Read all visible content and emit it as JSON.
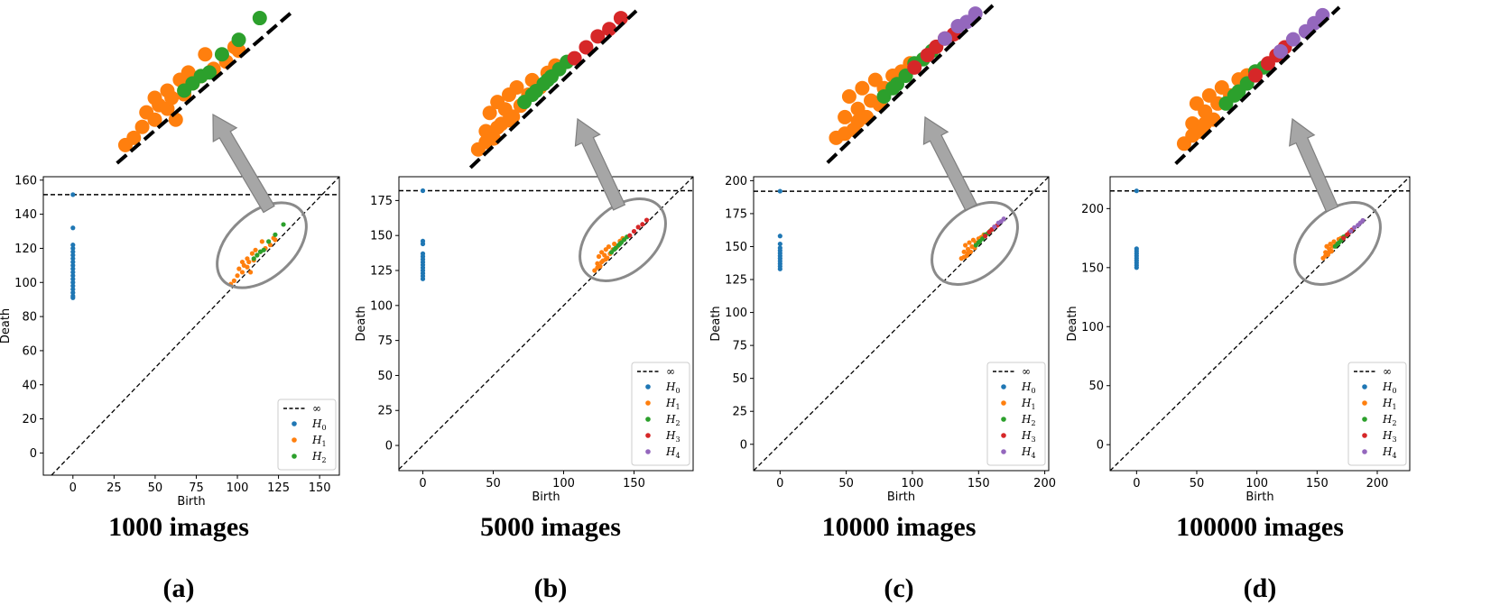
{
  "chart_data": [
    {
      "type": "scatter",
      "panel": "(a)",
      "caption": "1000 images",
      "xlabel": "Birth",
      "ylabel": "Death",
      "xlim": [
        -18,
        162
      ],
      "ylim": [
        -13,
        162
      ],
      "xticks": [
        "0",
        "25",
        "50",
        "75",
        "100",
        "125",
        "150"
      ],
      "yticks": [
        "0",
        "20",
        "40",
        "60",
        "80",
        "100",
        "120",
        "140",
        "160"
      ],
      "infinity_death": 151.5,
      "legend": {
        "infinity": "∞",
        "series_bases": [
          "H",
          "H",
          "H"
        ],
        "series_subs": [
          "0",
          "1",
          "2"
        ]
      },
      "series": [
        {
          "name": "H0",
          "color": "#1f77b4",
          "points": [
            [
              0,
              151.5
            ],
            [
              0,
              132
            ],
            [
              0,
              122
            ],
            [
              0,
              120
            ],
            [
              0,
              118
            ],
            [
              0,
              116
            ],
            [
              0,
              114
            ],
            [
              0,
              112
            ],
            [
              0,
              110
            ],
            [
              0,
              108
            ],
            [
              0,
              106
            ],
            [
              0,
              104
            ],
            [
              0,
              102
            ],
            [
              0,
              100
            ],
            [
              0,
              98
            ],
            [
              0,
              96
            ],
            [
              0,
              94
            ],
            [
              0,
              92
            ],
            [
              0,
              91
            ]
          ]
        },
        {
          "name": "H1",
          "color": "#ff7f0e",
          "points": [
            [
              98,
              101
            ],
            [
              100,
              104
            ],
            [
              101,
              108
            ],
            [
              103,
              106
            ],
            [
              104,
              110
            ],
            [
              106,
              109
            ],
            [
              107,
              112
            ],
            [
              108,
              106
            ],
            [
              110,
              113
            ],
            [
              112,
              116
            ],
            [
              114,
              118
            ],
            [
              117,
              120
            ],
            [
              120,
              122
            ],
            [
              123,
              125
            ],
            [
              103,
              112
            ],
            [
              106,
              114
            ],
            [
              109,
              117
            ],
            [
              111,
              119
            ],
            [
              96,
              99
            ],
            [
              115,
              124
            ],
            [
              122,
              126
            ]
          ]
        },
        {
          "name": "H2",
          "color": "#2ca02c",
          "points": [
            [
              112,
              116
            ],
            [
              116,
              119
            ],
            [
              119,
              124
            ],
            [
              123,
              128
            ],
            [
              128,
              134
            ],
            [
              110,
              114
            ],
            [
              114,
              118
            ]
          ]
        }
      ]
    },
    {
      "type": "scatter",
      "panel": "(b)",
      "caption": "5000 images",
      "xlabel": "Birth",
      "ylabel": "Death",
      "xlim": [
        -17,
        192
      ],
      "ylim": [
        -18,
        192
      ],
      "xticks": [
        "0",
        "50",
        "100",
        "150"
      ],
      "yticks": [
        "0",
        "25",
        "50",
        "75",
        "100",
        "125",
        "150",
        "175"
      ],
      "infinity_death": 182,
      "legend": {
        "infinity": "∞",
        "series_bases": [
          "H",
          "H",
          "H",
          "H",
          "H"
        ],
        "series_subs": [
          "0",
          "1",
          "2",
          "3",
          "4"
        ]
      },
      "series": [
        {
          "name": "H0",
          "color": "#1f77b4",
          "points": [
            [
              0,
              182
            ],
            [
              0,
              146
            ],
            [
              0,
              144
            ],
            [
              0,
              137
            ],
            [
              0,
              135
            ],
            [
              0,
              133
            ],
            [
              0,
              131
            ],
            [
              0,
              129
            ],
            [
              0,
              127
            ],
            [
              0,
              125
            ],
            [
              0,
              123
            ],
            [
              0,
              121
            ],
            [
              0,
              119
            ]
          ]
        },
        {
          "name": "H1",
          "color": "#ff7f0e",
          "points": [
            [
              122,
              125
            ],
            [
              124,
              130
            ],
            [
              125,
              135
            ],
            [
              126,
              128
            ],
            [
              127,
              138
            ],
            [
              128,
              132
            ],
            [
              129,
              136
            ],
            [
              130,
              140
            ],
            [
              131,
              134
            ],
            [
              132,
              142
            ],
            [
              133,
              137
            ],
            [
              135,
              140
            ],
            [
              136,
              144
            ],
            [
              138,
              142
            ],
            [
              140,
              146
            ],
            [
              142,
              148
            ],
            [
              124,
              127
            ],
            [
              127,
              131
            ],
            [
              130,
              133
            ]
          ]
        },
        {
          "name": "H2",
          "color": "#2ca02c",
          "points": [
            [
              134,
              138
            ],
            [
              137,
              141
            ],
            [
              139,
              143
            ],
            [
              141,
              145
            ],
            [
              143,
              147
            ],
            [
              145,
              149
            ],
            [
              136,
              140
            ],
            [
              140,
              144
            ]
          ]
        },
        {
          "name": "H3",
          "color": "#d62728",
          "points": [
            [
              147,
              150
            ],
            [
              150,
              153
            ],
            [
              153,
              156
            ],
            [
              156,
              158
            ],
            [
              159,
              161
            ]
          ]
        }
      ]
    },
    {
      "type": "scatter",
      "panel": "(c)",
      "caption": "10000 images",
      "xlabel": "Birth",
      "ylabel": "Death",
      "xlim": [
        -20,
        203
      ],
      "ylim": [
        -20,
        203
      ],
      "xticks": [
        "0",
        "50",
        "100",
        "150",
        "200"
      ],
      "yticks": [
        "0",
        "25",
        "50",
        "75",
        "100",
        "125",
        "150",
        "175",
        "200"
      ],
      "infinity_death": 192,
      "legend": {
        "infinity": "∞",
        "series_bases": [
          "H",
          "H",
          "H",
          "H",
          "H"
        ],
        "series_subs": [
          "0",
          "1",
          "2",
          "3",
          "4"
        ]
      },
      "series": [
        {
          "name": "H0",
          "color": "#1f77b4",
          "points": [
            [
              0,
              192
            ],
            [
              0,
              158
            ],
            [
              0,
              152
            ],
            [
              0,
              149
            ],
            [
              0,
              147
            ],
            [
              0,
              145
            ],
            [
              0,
              143
            ],
            [
              0,
              141
            ],
            [
              0,
              139
            ],
            [
              0,
              137
            ],
            [
              0,
              135
            ],
            [
              0,
              133
            ]
          ]
        },
        {
          "name": "H1",
          "color": "#ff7f0e",
          "points": [
            [
              137,
              141
            ],
            [
              139,
              146
            ],
            [
              140,
              151
            ],
            [
              141,
              143
            ],
            [
              142,
              148
            ],
            [
              143,
              153
            ],
            [
              144,
              146
            ],
            [
              145,
              150
            ],
            [
              146,
              155
            ],
            [
              147,
              149
            ],
            [
              148,
              153
            ],
            [
              150,
              156
            ],
            [
              152,
              157
            ],
            [
              154,
              159
            ],
            [
              139,
              142
            ],
            [
              142,
              145
            ]
          ]
        },
        {
          "name": "H2",
          "color": "#2ca02c",
          "points": [
            [
              148,
              151
            ],
            [
              151,
              154
            ],
            [
              153,
              156
            ],
            [
              155,
              159
            ],
            [
              157,
              160
            ],
            [
              159,
              162
            ],
            [
              150,
              153
            ]
          ]
        },
        {
          "name": "H3",
          "color": "#d62728",
          "points": [
            [
              155,
              158
            ],
            [
              158,
              161
            ],
            [
              160,
              163
            ],
            [
              162,
              165
            ],
            [
              164,
              166
            ]
          ]
        },
        {
          "name": "H4",
          "color": "#9467bd",
          "points": [
            [
              162,
              165
            ],
            [
              165,
              168
            ],
            [
              167,
              169
            ],
            [
              169,
              171
            ]
          ]
        }
      ]
    },
    {
      "type": "scatter",
      "panel": "(d)",
      "caption": "100000 images",
      "xlabel": "Birth",
      "ylabel": "Death",
      "xlim": [
        -22,
        227
      ],
      "ylim": [
        -22,
        227
      ],
      "xticks": [
        "0",
        "50",
        "100",
        "150",
        "200"
      ],
      "yticks": [
        "0",
        "50",
        "100",
        "150",
        "200"
      ],
      "infinity_death": 215,
      "legend": {
        "infinity": "∞",
        "series_bases": [
          "H",
          "H",
          "H",
          "H",
          "H"
        ],
        "series_subs": [
          "0",
          "1",
          "2",
          "3",
          "4"
        ]
      },
      "series": [
        {
          "name": "H0",
          "color": "#1f77b4",
          "points": [
            [
              0,
              215
            ],
            [
              0,
              166
            ],
            [
              0,
              164
            ],
            [
              0,
              162
            ],
            [
              0,
              160
            ],
            [
              0,
              158
            ],
            [
              0,
              156
            ],
            [
              0,
              154
            ],
            [
              0,
              152
            ],
            [
              0,
              150
            ]
          ]
        },
        {
          "name": "H1",
          "color": "#ff7f0e",
          "points": [
            [
              155,
              158
            ],
            [
              157,
              163
            ],
            [
              158,
              168
            ],
            [
              159,
              161
            ],
            [
              160,
              166
            ],
            [
              161,
              170
            ],
            [
              162,
              164
            ],
            [
              163,
              168
            ],
            [
              164,
              172
            ],
            [
              166,
              170
            ],
            [
              168,
              174
            ],
            [
              170,
              175
            ],
            [
              157,
              160
            ],
            [
              160,
              163
            ]
          ]
        },
        {
          "name": "H2",
          "color": "#2ca02c",
          "points": [
            [
              165,
              168
            ],
            [
              168,
              171
            ],
            [
              170,
              173
            ],
            [
              172,
              176
            ],
            [
              174,
              177
            ],
            [
              167,
              170
            ]
          ]
        },
        {
          "name": "H3",
          "color": "#d62728",
          "points": [
            [
              172,
              175
            ],
            [
              175,
              178
            ],
            [
              177,
              180
            ],
            [
              179,
              182
            ]
          ]
        },
        {
          "name": "H4",
          "color": "#9467bd",
          "points": [
            [
              178,
              181
            ],
            [
              181,
              184
            ],
            [
              184,
              186
            ],
            [
              186,
              188
            ],
            [
              188,
              190
            ]
          ]
        }
      ]
    }
  ]
}
